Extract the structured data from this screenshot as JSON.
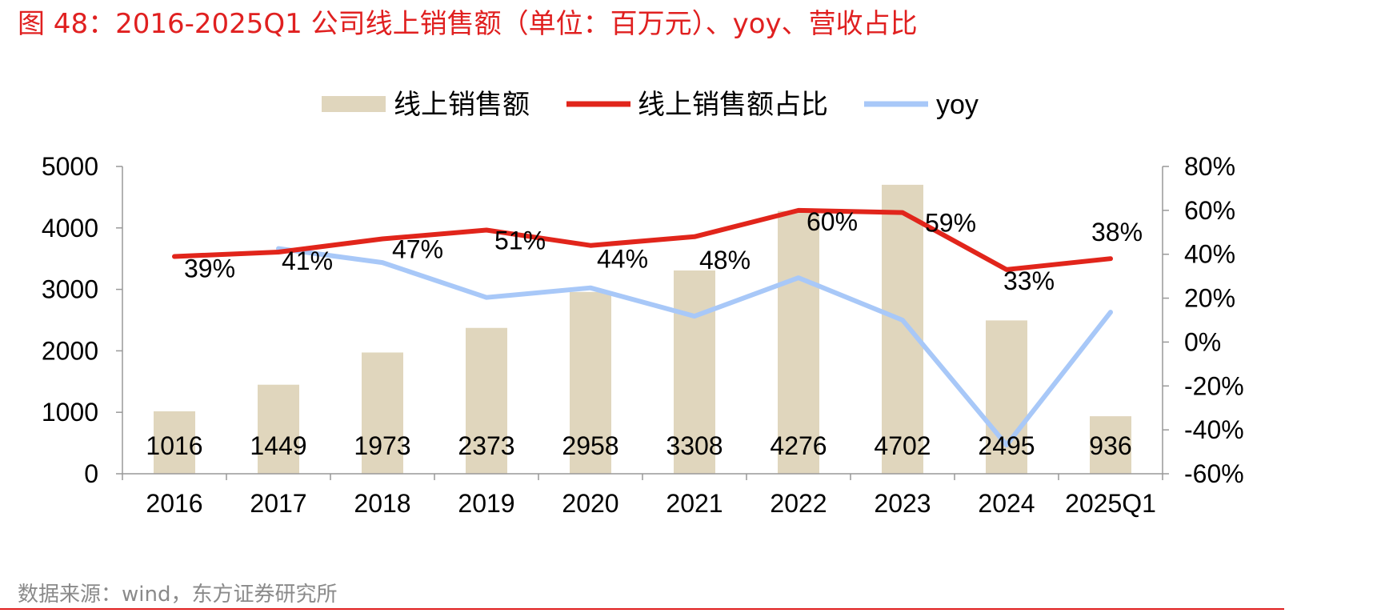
{
  "title": "图 48：2016-2025Q1 公司线上销售额（单位：百万元）、yoy、营收占比",
  "source": "数据来源：wind，东方证券研究所",
  "chart_data": {
    "type": "bar",
    "categories": [
      "2016",
      "2017",
      "2018",
      "2019",
      "2020",
      "2021",
      "2022",
      "2023",
      "2024",
      "2025Q1"
    ],
    "legend": {
      "position": "top-center"
    },
    "y_left": {
      "range": [
        0,
        5000
      ],
      "ticks": [
        0,
        1000,
        2000,
        3000,
        4000,
        5000
      ]
    },
    "y_right": {
      "range": [
        -60,
        80
      ],
      "ticks": [
        -60,
        -40,
        -20,
        0,
        20,
        40,
        60,
        80
      ],
      "tick_labels": [
        "-60%",
        "-40%",
        "-20%",
        "0%",
        "20%",
        "40%",
        "60%",
        "80%"
      ]
    },
    "series": [
      {
        "name": "线上销售额",
        "type": "bar",
        "axis": "left",
        "color": "#e0d6bd",
        "values": [
          1016,
          1449,
          1973,
          2373,
          2958,
          3308,
          4276,
          4702,
          2495,
          936
        ],
        "labels": [
          "1016",
          "1449",
          "1973",
          "2373",
          "2958",
          "3308",
          "4276",
          "4702",
          "2495",
          "936"
        ]
      },
      {
        "name": "线上销售额占比",
        "type": "line",
        "axis": "right",
        "color": "#e1251b",
        "values": [
          39,
          41,
          47,
          51,
          44,
          48,
          60,
          59,
          33,
          38
        ],
        "labels": [
          "39%",
          "41%",
          "47%",
          "51%",
          "44%",
          "48%",
          "60%",
          "59%",
          "33%",
          "38%"
        ]
      },
      {
        "name": "yoy",
        "type": "line",
        "axis": "right",
        "color": "#a8c8f8",
        "values": [
          null,
          42.6,
          36.2,
          20.3,
          24.7,
          11.8,
          29.3,
          10.0,
          -46.9,
          13.6
        ]
      }
    ],
    "grid": false
  }
}
